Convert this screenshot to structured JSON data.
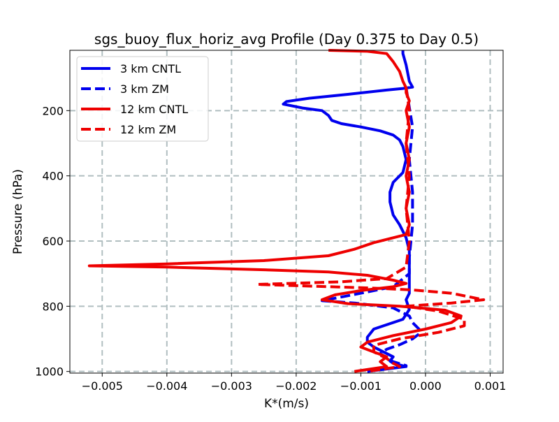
{
  "chart_data": {
    "type": "line",
    "title": "sgs_buoy_flux_horiz_avg Profile (Day 0.375 to Day 0.5)",
    "xlabel": "K*(m/s)",
    "ylabel": "Pressure (hPa)",
    "xlim": [
      -0.0055,
      0.0012
    ],
    "ylim": [
      1005,
      15
    ],
    "y_inverted": true,
    "grid": true,
    "legend_position": "upper-left",
    "xticks": [
      -0.005,
      -0.004,
      -0.003,
      -0.002,
      -0.001,
      0.0,
      0.001
    ],
    "xtick_labels": [
      "−0.005",
      "−0.004",
      "−0.003",
      "−0.002",
      "−0.001",
      "0.000",
      "0.001"
    ],
    "yticks": [
      200,
      400,
      600,
      800,
      1000
    ],
    "ytick_labels": [
      "200",
      "400",
      "600",
      "800",
      "1000"
    ],
    "series": [
      {
        "name": "3 km CNTL",
        "color": "#0000ee",
        "style": "solid",
        "points": [
          [
            -0.00035,
            15
          ],
          [
            -0.00035,
            25
          ],
          [
            -0.0003,
            60
          ],
          [
            -0.00025,
            110
          ],
          [
            -0.0002,
            128
          ],
          [
            -0.00035,
            132
          ],
          [
            -0.0006,
            137
          ],
          [
            -0.0012,
            150
          ],
          [
            -0.0018,
            162
          ],
          [
            -0.00215,
            172
          ],
          [
            -0.0022,
            180
          ],
          [
            -0.0019,
            192
          ],
          [
            -0.0016,
            200
          ],
          [
            -0.0015,
            215
          ],
          [
            -0.00145,
            230
          ],
          [
            -0.0013,
            240
          ],
          [
            -0.001,
            250
          ],
          [
            -0.0007,
            262
          ],
          [
            -0.0005,
            275
          ],
          [
            -0.0004,
            290
          ],
          [
            -0.00035,
            310
          ],
          [
            -0.0003,
            350
          ],
          [
            -0.00035,
            390
          ],
          [
            -0.0005,
            420
          ],
          [
            -0.00055,
            450
          ],
          [
            -0.00055,
            480
          ],
          [
            -0.0005,
            520
          ],
          [
            -0.0004,
            550
          ],
          [
            -0.0003,
            590
          ],
          [
            -0.00025,
            630
          ],
          [
            -0.00025,
            680
          ],
          [
            -0.00025,
            730
          ],
          [
            -0.00025,
            760
          ],
          [
            -0.0003,
            780
          ],
          [
            -0.00025,
            810
          ],
          [
            -0.00035,
            840
          ],
          [
            -0.0008,
            870
          ],
          [
            -0.0009,
            895
          ],
          [
            -0.0009,
            910
          ],
          [
            -0.0008,
            925
          ],
          [
            -0.00065,
            940
          ],
          [
            -0.0005,
            955
          ],
          [
            -0.00055,
            968
          ],
          [
            -0.0005,
            975
          ],
          [
            -0.0003,
            985
          ],
          [
            -0.0007,
            995
          ],
          [
            -0.0009,
            1000
          ]
        ]
      },
      {
        "name": "3 km ZM",
        "color": "#0000ee",
        "style": "dashed",
        "points": [
          [
            -0.0003,
            130
          ],
          [
            -0.0002,
            250
          ],
          [
            -0.00025,
            350
          ],
          [
            -0.0002,
            450
          ],
          [
            -0.0002,
            550
          ],
          [
            -0.00025,
            650
          ],
          [
            -0.00025,
            700
          ],
          [
            -0.0005,
            740
          ],
          [
            -0.001,
            760
          ],
          [
            -0.0016,
            783
          ],
          [
            -0.0011,
            790
          ],
          [
            -0.0005,
            805
          ],
          [
            -0.00025,
            830
          ],
          [
            -0.0002,
            850
          ],
          [
            -0.0001,
            870
          ],
          [
            -0.0001,
            885
          ],
          [
            -0.0002,
            900
          ],
          [
            -0.0004,
            918
          ],
          [
            -0.0006,
            932
          ],
          [
            -0.0007,
            945
          ],
          [
            -0.0006,
            958
          ],
          [
            -0.0005,
            970
          ],
          [
            -0.0003,
            982
          ],
          [
            -0.0006,
            992
          ],
          [
            -0.0009,
            1000
          ]
        ]
      },
      {
        "name": "12 km CNTL",
        "color": "#ee0000",
        "style": "solid",
        "points": [
          [
            -0.0015,
            15
          ],
          [
            -0.0009,
            18
          ],
          [
            -0.0006,
            25
          ],
          [
            -0.0005,
            50
          ],
          [
            -0.0004,
            80
          ],
          [
            -0.00035,
            110
          ],
          [
            -0.0003,
            130
          ],
          [
            -0.0003,
            145
          ],
          [
            -0.00025,
            170
          ],
          [
            -0.0003,
            200
          ],
          [
            -0.00025,
            250
          ],
          [
            -0.0003,
            300
          ],
          [
            -0.00025,
            350
          ],
          [
            -0.0003,
            400
          ],
          [
            -0.00025,
            450
          ],
          [
            -0.0003,
            500
          ],
          [
            -0.00025,
            550
          ],
          [
            -0.0003,
            580
          ],
          [
            -0.0005,
            590
          ],
          [
            -0.0008,
            605
          ],
          [
            -0.0011,
            625
          ],
          [
            -0.0015,
            645
          ],
          [
            -0.0025,
            660
          ],
          [
            -0.004,
            670
          ],
          [
            -0.0052,
            676
          ],
          [
            -0.004,
            680
          ],
          [
            -0.0025,
            688
          ],
          [
            -0.0015,
            695
          ],
          [
            -0.0009,
            705
          ],
          [
            -0.0005,
            720
          ],
          [
            -0.0003,
            730
          ],
          [
            -0.0005,
            740
          ],
          [
            -0.001,
            752
          ],
          [
            -0.0014,
            765
          ],
          [
            -0.0016,
            780
          ],
          [
            -0.0012,
            792
          ],
          [
            -0.0004,
            800
          ],
          [
            0.0003,
            812
          ],
          [
            0.00055,
            830
          ],
          [
            0.0004,
            850
          ],
          [
            0.0,
            870
          ],
          [
            -0.0005,
            890
          ],
          [
            -0.0009,
            910
          ],
          [
            -0.001,
            925
          ],
          [
            -0.0008,
            940
          ],
          [
            -0.0006,
            955
          ],
          [
            -0.0007,
            970
          ],
          [
            -0.0006,
            985
          ],
          [
            -0.0011,
            1000
          ]
        ]
      },
      {
        "name": "12 km ZM",
        "color": "#ee0000",
        "style": "dashed",
        "points": [
          [
            -0.0003,
            130
          ],
          [
            -0.00025,
            200
          ],
          [
            -0.0003,
            300
          ],
          [
            -0.00025,
            400
          ],
          [
            -0.0003,
            500
          ],
          [
            -0.00025,
            600
          ],
          [
            -0.0003,
            680
          ],
          [
            -0.0006,
            715
          ],
          [
            -0.0013,
            725
          ],
          [
            -0.0026,
            733
          ],
          [
            -0.0015,
            740
          ],
          [
            -0.0007,
            745
          ],
          [
            -0.0002,
            750
          ],
          [
            0.0004,
            760
          ],
          [
            0.0009,
            780
          ],
          [
            0.0004,
            790
          ],
          [
            -0.0003,
            800
          ],
          [
            0.0002,
            815
          ],
          [
            0.0006,
            840
          ],
          [
            0.0006,
            860
          ],
          [
            0.0002,
            880
          ],
          [
            -0.0004,
            900
          ],
          [
            -0.0008,
            920
          ],
          [
            -0.0008,
            940
          ],
          [
            -0.0006,
            960
          ],
          [
            -0.0005,
            975
          ],
          [
            -0.0004,
            985
          ],
          [
            -0.0009,
            1000
          ]
        ]
      }
    ]
  }
}
